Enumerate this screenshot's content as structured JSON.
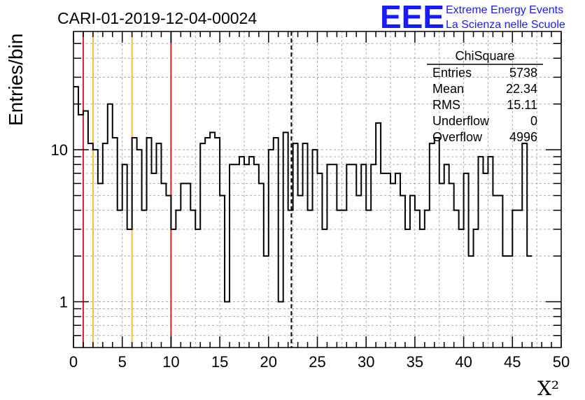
{
  "chart_data": {
    "type": "bar",
    "title": "CARI-01-2019-12-04-00024",
    "xlabel": "X²",
    "ylabel": "Entries/bin",
    "xlim": [
      0,
      50
    ],
    "ylim": [
      0.5,
      60
    ],
    "yscale": "log",
    "grid": true,
    "bin_width": 0.5,
    "x_ticks": [
      "0",
      "5",
      "10",
      "15",
      "20",
      "25",
      "30",
      "35",
      "40",
      "45",
      "50"
    ],
    "y_ticks": [
      "1",
      "10"
    ],
    "values": [
      26,
      17,
      18,
      11,
      10,
      6,
      11,
      20,
      12,
      4,
      8,
      3,
      12,
      10,
      4,
      12,
      7,
      11,
      6,
      5,
      3,
      4,
      6,
      6,
      4,
      3,
      11,
      12,
      13,
      12,
      5,
      1,
      8,
      8,
      9,
      8,
      9,
      8,
      6,
      2,
      10,
      12,
      1,
      13,
      4,
      11,
      5,
      11,
      4,
      10,
      7,
      3,
      8,
      8,
      4,
      4,
      8,
      8,
      5,
      8,
      4,
      8,
      15,
      7,
      7,
      6,
      7,
      5,
      3,
      5,
      4,
      3,
      4,
      11,
      12,
      6,
      8,
      6,
      4,
      3,
      7,
      2,
      3,
      9,
      7,
      9,
      5,
      5,
      2,
      2,
      4,
      4,
      11,
      2
    ],
    "vertical_lines": [
      {
        "x": 1,
        "color": "#dd2222",
        "style": "solid"
      },
      {
        "x": 2,
        "color": "#f2c12e",
        "style": "solid"
      },
      {
        "x": 6,
        "color": "#f2c12e",
        "style": "solid"
      },
      {
        "x": 10,
        "color": "#dd2222",
        "style": "solid"
      },
      {
        "x": 22.34,
        "color": "#000000",
        "style": "dashed"
      }
    ],
    "stats": {
      "title": "ChiSquare",
      "rows": [
        {
          "label": "Entries",
          "value": "5738"
        },
        {
          "label": "Mean",
          "value": "22.34"
        },
        {
          "label": "RMS",
          "value": "15.11"
        },
        {
          "label": "Underflow",
          "value": "0"
        },
        {
          "label": "Overflow",
          "value": "4996"
        }
      ],
      "placement": "top-right"
    }
  },
  "logo": {
    "text": "EEE",
    "line1": "Extreme Energy Events",
    "line2": "La Scienza nelle Scuole",
    "color": "#1a1aff"
  }
}
